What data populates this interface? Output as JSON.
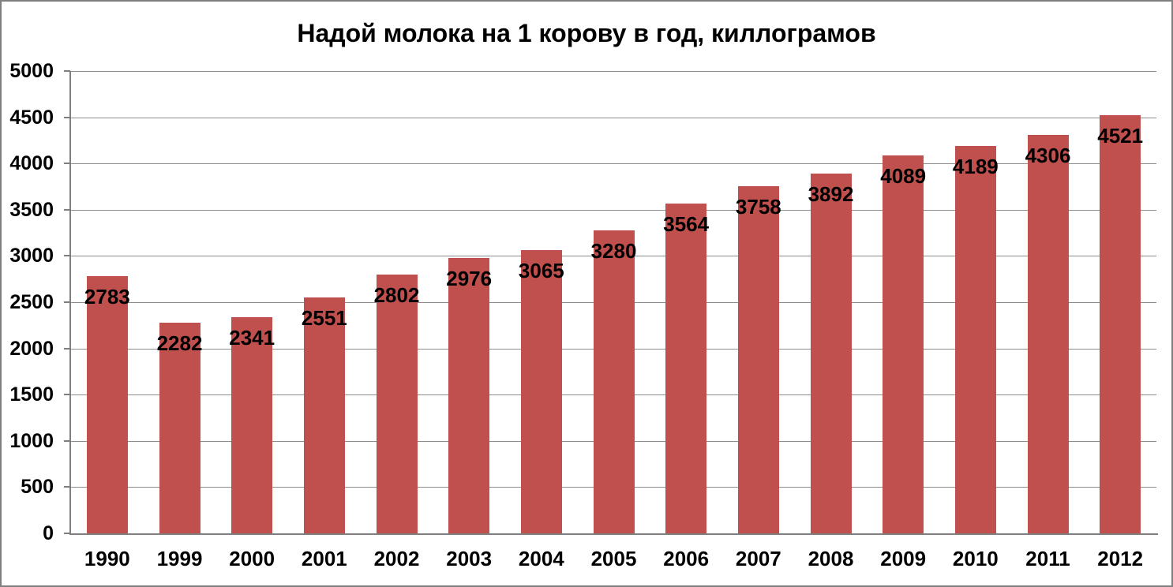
{
  "window": {
    "background": "#FFFFFF",
    "frame_border_color": "#7F7F7F"
  },
  "chart_data": {
    "type": "bar",
    "title": "Надой молока на 1 корову в год, киллограмов",
    "categories": [
      "1990",
      "1999",
      "2000",
      "2001",
      "2002",
      "2003",
      "2004",
      "2005",
      "2006",
      "2007",
      "2008",
      "2009",
      "2010",
      "2011",
      "2012"
    ],
    "values": [
      2783,
      2282,
      2341,
      2551,
      2802,
      2976,
      3065,
      3280,
      3564,
      3758,
      3892,
      4089,
      4189,
      4306,
      4521
    ],
    "xlabel": "",
    "ylabel": "",
    "ylim": [
      0,
      5000
    ],
    "ytick_step": 500,
    "yticks": [
      0,
      500,
      1000,
      1500,
      2000,
      2500,
      3000,
      3500,
      4000,
      4500,
      5000
    ],
    "grid": true,
    "legend": false,
    "data_labels_position": "inside-end",
    "bar_color": "#C0504D",
    "gridline_color": "#8C8C8C",
    "axis_color": "#7F7F7F",
    "text_color": "#000000"
  }
}
